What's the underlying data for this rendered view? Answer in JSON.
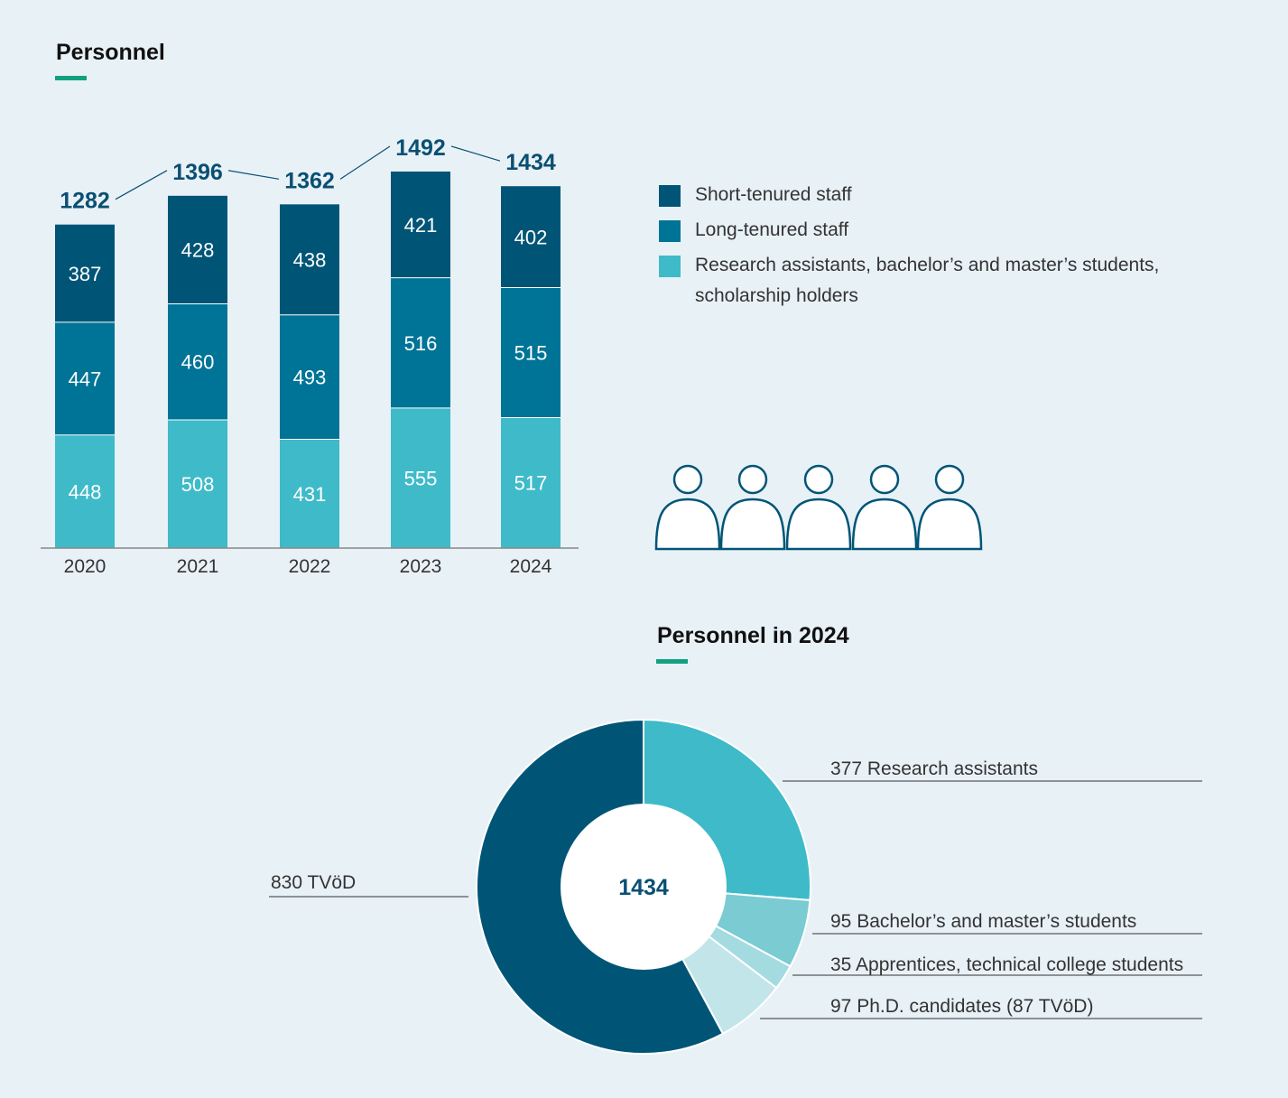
{
  "headings": {
    "personnel": "Personnel",
    "personnel_2024": "Personnel in 2024"
  },
  "colors": {
    "short": "#005577",
    "long": "#007496",
    "research": "#3fbac9",
    "bachelor": "#7bcbd3",
    "apprentice": "#a3dbe1",
    "phd": "#c2e5e9",
    "accent": "#12a07e",
    "total_text": "#0a4f73"
  },
  "icons": [
    "person-icon",
    "person-icon",
    "person-icon",
    "person-icon",
    "person-icon"
  ],
  "chart_data": [
    {
      "type": "bar",
      "stacked": true,
      "title": "Personnel",
      "categories": [
        "2020",
        "2021",
        "2022",
        "2023",
        "2024"
      ],
      "series": [
        {
          "name": "Research assistants, bachelor’s and master’s students, scholarship holders",
          "values": [
            448,
            508,
            431,
            555,
            517
          ]
        },
        {
          "name": "Long-tenured staff",
          "values": [
            447,
            460,
            493,
            516,
            515
          ]
        },
        {
          "name": "Short-tenured staff",
          "values": [
            387,
            428,
            438,
            421,
            402
          ]
        }
      ],
      "totals": [
        1282,
        1396,
        1362,
        1492,
        1434
      ],
      "legend_order": [
        "Short-tenured staff",
        "Long-tenured staff",
        "Research assistants, bachelor’s and master’s students, scholarship holders"
      ],
      "ylim": [
        0,
        1600
      ],
      "grid": false,
      "legend_position": "right"
    },
    {
      "type": "pie",
      "donut": true,
      "title": "Personnel in 2024",
      "center_label": "1434",
      "slices": [
        {
          "label": "377 Research assistants",
          "value": 377
        },
        {
          "label": "95 Bachelor’s and master’s students",
          "value": 95
        },
        {
          "label": "35 Apprentices, technical college students",
          "value": 35
        },
        {
          "label": "97 Ph.D. candidates (87 TVöD)",
          "value": 97
        },
        {
          "label": "830 TVöD",
          "value": 830
        }
      ]
    }
  ]
}
